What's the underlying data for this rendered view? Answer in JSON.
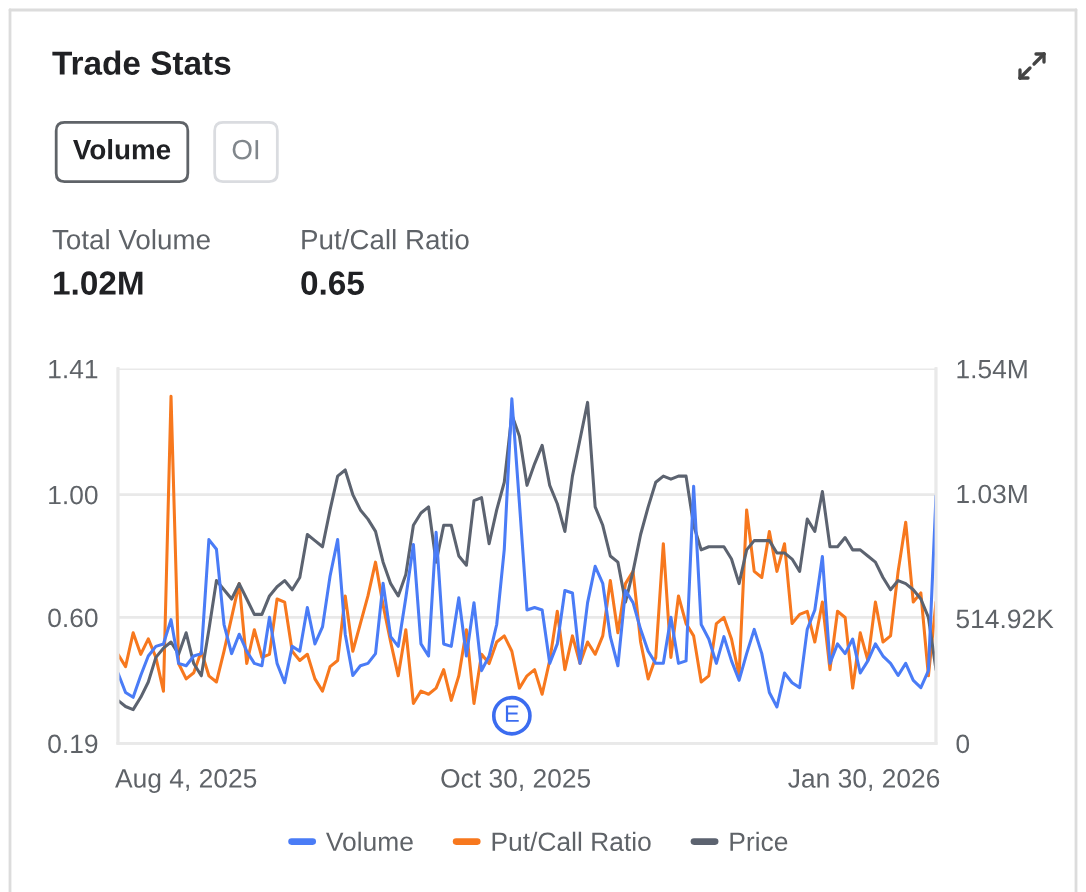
{
  "chart_data": {
    "type": "line",
    "title": "Trade Stats",
    "annotations": [
      "Volume",
      "OI",
      "Total Volume",
      "1.02M",
      "Put/Call Ratio",
      "0.65",
      {
        "text": "E",
        "x": "2025-10-29",
        "y": 0.28
      }
    ],
    "x": [
      "2025-07-17",
      "2025-07-19",
      "2025-07-21",
      "2025-07-23",
      "2025-07-25",
      "2025-07-27",
      "2025-07-29",
      "2025-07-31",
      "2025-08-02",
      "2025-08-04",
      "2025-08-06",
      "2025-08-08",
      "2025-08-10",
      "2025-08-12",
      "2025-08-14",
      "2025-08-16",
      "2025-08-18",
      "2025-08-20",
      "2025-08-22",
      "2025-08-24",
      "2025-08-26",
      "2025-08-28",
      "2025-08-30",
      "2025-09-01",
      "2025-09-03",
      "2025-09-05",
      "2025-09-07",
      "2025-09-09",
      "2025-09-11",
      "2025-09-13",
      "2025-09-15",
      "2025-09-17",
      "2025-09-19",
      "2025-09-21",
      "2025-09-23",
      "2025-09-25",
      "2025-09-27",
      "2025-09-29",
      "2025-10-01",
      "2025-10-03",
      "2025-10-05",
      "2025-10-07",
      "2025-10-09",
      "2025-10-11",
      "2025-10-13",
      "2025-10-15",
      "2025-10-17",
      "2025-10-19",
      "2025-10-21",
      "2025-10-23",
      "2025-10-25",
      "2025-10-27",
      "2025-10-29",
      "2025-10-31",
      "2025-11-02",
      "2025-11-04",
      "2025-11-06",
      "2025-11-08",
      "2025-11-10",
      "2025-11-12",
      "2025-11-14",
      "2025-11-16",
      "2025-11-18",
      "2025-11-20",
      "2025-11-22",
      "2025-11-24",
      "2025-11-26",
      "2025-11-28",
      "2025-11-30",
      "2025-12-02",
      "2025-12-04",
      "2025-12-06",
      "2025-12-08",
      "2025-12-10",
      "2025-12-12",
      "2025-12-14",
      "2025-12-16",
      "2025-12-18",
      "2025-12-20",
      "2025-12-22",
      "2025-12-24",
      "2025-12-26",
      "2025-12-28",
      "2025-12-30",
      "2026-01-01",
      "2026-01-03",
      "2026-01-05",
      "2026-01-07",
      "2026-01-09",
      "2026-01-11",
      "2026-01-13",
      "2026-01-15",
      "2026-01-17",
      "2026-01-19",
      "2026-01-21",
      "2026-01-23",
      "2026-01-25",
      "2026-01-27",
      "2026-01-29",
      "2026-01-31",
      "2026-02-02",
      "2026-02-04",
      "2026-02-06",
      "2026-02-08",
      "2026-02-10",
      "2026-02-12",
      "2026-02-14",
      "2026-02-16",
      "2026-02-18"
    ],
    "xlim": [
      "2025-07-17",
      "2026-02-18"
    ],
    "xticks": [
      {
        "value": "2025-08-04",
        "label": "Aug 4, 2025"
      },
      {
        "value": "2025-10-30",
        "label": "Oct 30, 2025"
      },
      {
        "value": "2026-01-30",
        "label": "Jan 30, 2026"
      }
    ],
    "ylim": [
      0.19,
      1.41
    ],
    "yticks": [
      0.19,
      {
        "value": 0.6,
        "label": "0.60"
      },
      {
        "value": 1.0,
        "label": "1.00"
      },
      1.41
    ],
    "y2lim": [
      0,
      1544760
    ],
    "y2ticks": [
      0,
      {
        "value": 514920,
        "label": "514.92K"
      },
      {
        "value": 1029840,
        "label": "1.03M"
      },
      {
        "value": 1544760,
        "label": "1.54M"
      }
    ],
    "grid": "y",
    "legend": "bottom",
    "series": [
      {
        "name": "Volume",
        "color": "#4a7cf6",
        "axis": "y2",
        "values": [
          290000,
          210000,
          190000,
          280000,
          360000,
          400000,
          410000,
          510000,
          330000,
          320000,
          360000,
          370000,
          840000,
          800000,
          490000,
          370000,
          450000,
          380000,
          330000,
          320000,
          520000,
          330000,
          250000,
          400000,
          380000,
          560000,
          410000,
          480000,
          690000,
          840000,
          450000,
          280000,
          320000,
          330000,
          370000,
          660000,
          440000,
          400000,
          600000,
          820000,
          410000,
          360000,
          870000,
          410000,
          400000,
          600000,
          360000,
          580000,
          300000,
          360000,
          490000,
          800000,
          1420000,
          990000,
          550000,
          560000,
          550000,
          330000,
          410000,
          630000,
          620000,
          330000,
          580000,
          730000,
          660000,
          440000,
          320000,
          630000,
          580000,
          470000,
          380000,
          330000,
          330000,
          520000,
          330000,
          340000,
          1060000,
          490000,
          430000,
          330000,
          440000,
          340000,
          260000,
          370000,
          470000,
          370000,
          210000,
          150000,
          290000,
          250000,
          230000,
          470000,
          550000,
          770000,
          330000,
          410000,
          370000,
          430000,
          290000,
          340000,
          410000,
          360000,
          330000,
          280000,
          330000,
          260000,
          230000,
          300000,
          1020000
        ]
      },
      {
        "name": "Put/Call Ratio",
        "color": "#f7781e",
        "values": [
          0.48,
          0.44,
          0.55,
          0.48,
          0.53,
          0.47,
          0.36,
          1.32,
          0.45,
          0.4,
          0.42,
          0.49,
          0.41,
          0.39,
          0.49,
          0.6,
          0.71,
          0.45,
          0.56,
          0.47,
          0.48,
          0.66,
          0.65,
          0.49,
          0.46,
          0.48,
          0.4,
          0.36,
          0.44,
          0.46,
          0.67,
          0.49,
          0.58,
          0.67,
          0.78,
          0.64,
          0.52,
          0.41,
          0.56,
          0.32,
          0.36,
          0.35,
          0.37,
          0.43,
          0.33,
          0.41,
          0.56,
          0.32,
          0.48,
          0.45,
          0.52,
          0.54,
          0.49,
          0.37,
          0.41,
          0.43,
          0.35,
          0.46,
          0.62,
          0.43,
          0.54,
          0.45,
          0.52,
          0.48,
          0.54,
          0.72,
          0.55,
          0.71,
          0.75,
          0.52,
          0.4,
          0.47,
          0.84,
          0.47,
          0.67,
          0.58,
          0.54,
          0.39,
          0.41,
          0.58,
          0.6,
          0.53,
          0.41,
          0.95,
          0.75,
          0.73,
          0.88,
          0.75,
          0.84,
          0.58,
          0.61,
          0.62,
          0.52,
          0.65,
          0.43,
          0.62,
          0.6,
          0.37,
          0.55,
          0.46,
          0.65,
          0.52,
          0.54,
          0.75,
          0.91,
          0.65,
          0.68,
          0.41,
          0.65
        ]
      },
      {
        "name": "Price",
        "color": "#5c6370",
        "values": [
          0.33,
          0.31,
          0.3,
          0.34,
          0.39,
          0.47,
          0.5,
          0.52,
          0.48,
          0.55,
          0.45,
          0.41,
          0.56,
          0.72,
          0.69,
          0.66,
          0.71,
          0.66,
          0.61,
          0.61,
          0.67,
          0.7,
          0.72,
          0.69,
          0.73,
          0.87,
          0.85,
          0.83,
          0.95,
          1.06,
          1.08,
          1.0,
          0.95,
          0.92,
          0.88,
          0.78,
          0.71,
          0.67,
          0.74,
          0.9,
          0.94,
          0.96,
          0.78,
          0.9,
          0.9,
          0.8,
          0.77,
          0.98,
          0.99,
          0.84,
          0.95,
          1.04,
          1.26,
          1.19,
          1.03,
          1.1,
          1.16,
          1.03,
          0.97,
          0.88,
          1.06,
          1.18,
          1.3,
          0.96,
          0.9,
          0.8,
          0.78,
          0.65,
          0.75,
          0.87,
          0.96,
          1.04,
          1.06,
          1.05,
          1.06,
          1.06,
          0.9,
          0.82,
          0.83,
          0.83,
          0.83,
          0.79,
          0.71,
          0.82,
          0.85,
          0.85,
          0.85,
          0.81,
          0.81,
          0.79,
          0.75,
          0.92,
          0.88,
          1.01,
          0.83,
          0.83,
          0.86,
          0.82,
          0.82,
          0.8,
          0.78,
          0.73,
          0.69,
          0.72,
          0.71,
          0.69,
          0.66,
          0.6,
          0.43
        ]
      }
    ]
  }
}
